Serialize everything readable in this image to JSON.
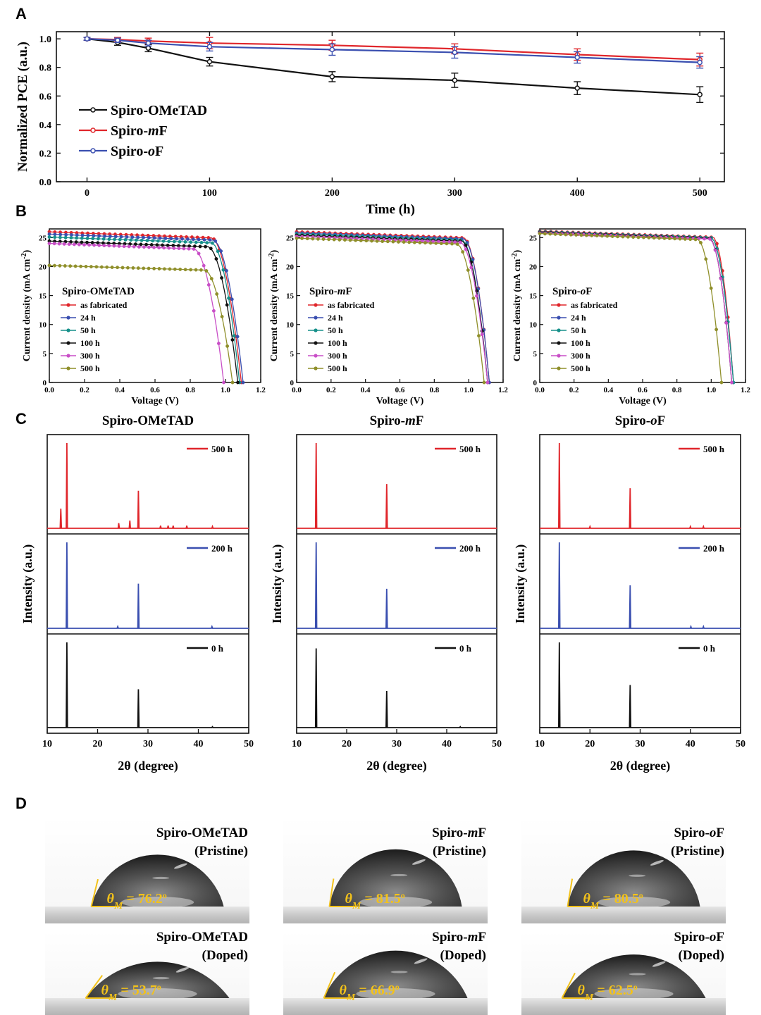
{
  "panel_labels": {
    "A": "A",
    "B": "B",
    "C": "C",
    "D": "D"
  },
  "colors": {
    "black": "#111111",
    "red": "#e0262b",
    "blue": "#3a4fb0",
    "teal": "#16908a",
    "magenta": "#c94fc7",
    "olive": "#8f8f2a",
    "gold": "#f3c21a"
  },
  "chart_data": [
    {
      "id": "A",
      "type": "line",
      "xlabel": "Time (h)",
      "ylabel": "Normalized PCE (a.u.)",
      "xlim": [
        -25,
        520
      ],
      "ylim": [
        0,
        1.05
      ],
      "xticks": [
        "0",
        "100",
        "200",
        "300",
        "400",
        "500"
      ],
      "yticks": [
        "0.0",
        "0.2",
        "0.4",
        "0.6",
        "0.8",
        "1.0"
      ],
      "x": [
        0,
        25,
        50,
        100,
        200,
        300,
        400,
        500
      ],
      "series": [
        {
          "name": "Spiro-OMeTAD",
          "legend_prefix": "Spiro-OMeTAD",
          "legend_italic": "",
          "legend_suffix": "",
          "color": "black",
          "values": [
            1.0,
            0.975,
            0.935,
            0.84,
            0.735,
            0.71,
            0.655,
            0.61
          ],
          "errors": [
            0.01,
            0.02,
            0.025,
            0.03,
            0.035,
            0.05,
            0.045,
            0.055
          ]
        },
        {
          "name": "Spiro-mF",
          "legend_prefix": "Spiro-",
          "legend_italic": "m",
          "legend_suffix": "F",
          "color": "red",
          "values": [
            1.0,
            0.995,
            0.985,
            0.97,
            0.955,
            0.93,
            0.89,
            0.855
          ],
          "errors": [
            0.01,
            0.015,
            0.02,
            0.04,
            0.035,
            0.035,
            0.04,
            0.045
          ]
        },
        {
          "name": "Spiro-oF",
          "legend_prefix": "Spiro-",
          "legend_italic": "o",
          "legend_suffix": "F",
          "color": "blue",
          "values": [
            1.0,
            0.99,
            0.97,
            0.945,
            0.925,
            0.905,
            0.87,
            0.835
          ],
          "errors": [
            0.01,
            0.015,
            0.02,
            0.03,
            0.04,
            0.04,
            0.04,
            0.04
          ]
        }
      ]
    },
    {
      "id": "B",
      "type": "line",
      "xlabel": "Voltage (V)",
      "ylabel": "Current density (mA cm",
      "ylabel_sup": "-2",
      "ylabel_end": ")",
      "xlim": [
        0,
        1.2
      ],
      "ylim": [
        0,
        26.5
      ],
      "xticks": [
        "0.0",
        "0.2",
        "0.4",
        "0.6",
        "0.8",
        "1.0",
        "1.2"
      ],
      "yticks": [
        "0",
        "5",
        "10",
        "15",
        "20",
        "25"
      ],
      "legend_labels": [
        "as fabricated",
        "24 h",
        "50 h",
        "100 h",
        "300 h",
        "500 h"
      ],
      "legend_colors": [
        "red",
        "blue",
        "teal",
        "black",
        "magenta",
        "olive"
      ],
      "subplots": [
        {
          "title_prefix": "Spiro-OMeTAD",
          "title_italic": "",
          "title_suffix": "",
          "curves": [
            {
              "label": "as fabricated",
              "jsc": 26.0,
              "voc": 1.09,
              "vk": 0.92
            },
            {
              "label": "24 h",
              "jsc": 25.6,
              "voc": 1.1,
              "vk": 0.93
            },
            {
              "label": "50 h",
              "jsc": 25.1,
              "voc": 1.08,
              "vk": 0.92
            },
            {
              "label": "100 h",
              "jsc": 24.4,
              "voc": 1.07,
              "vk": 0.9
            },
            {
              "label": "300 h",
              "jsc": 24.0,
              "voc": 0.99,
              "vk": 0.82
            },
            {
              "label": "500 h",
              "jsc": 20.2,
              "voc": 1.04,
              "vk": 0.88
            }
          ]
        },
        {
          "title_prefix": "Spiro-",
          "title_italic": "m",
          "title_suffix": "F",
          "curves": [
            {
              "label": "as fabricated",
              "jsc": 26.0,
              "voc": 1.12,
              "vk": 0.97
            },
            {
              "label": "24 h",
              "jsc": 25.8,
              "voc": 1.12,
              "vk": 0.97
            },
            {
              "label": "50 h",
              "jsc": 25.6,
              "voc": 1.11,
              "vk": 0.96
            },
            {
              "label": "100 h",
              "jsc": 25.4,
              "voc": 1.11,
              "vk": 0.96
            },
            {
              "label": "300 h",
              "jsc": 25.2,
              "voc": 1.11,
              "vk": 0.95
            },
            {
              "label": "500 h",
              "jsc": 24.9,
              "voc": 1.09,
              "vk": 0.93
            }
          ]
        },
        {
          "title_prefix": "Spiro-",
          "title_italic": "o",
          "title_suffix": "F",
          "curves": [
            {
              "label": "as fabricated",
              "jsc": 26.1,
              "voc": 1.13,
              "vk": 1.01
            },
            {
              "label": "24 h",
              "jsc": 26.0,
              "voc": 1.13,
              "vk": 1.0
            },
            {
              "label": "50 h",
              "jsc": 26.0,
              "voc": 1.13,
              "vk": 1.0
            },
            {
              "label": "100 h",
              "jsc": 25.9,
              "voc": 1.12,
              "vk": 0.99
            },
            {
              "label": "300 h",
              "jsc": 25.8,
              "voc": 1.12,
              "vk": 0.99
            },
            {
              "label": "500 h",
              "jsc": 25.7,
              "voc": 1.06,
              "vk": 0.92
            }
          ]
        }
      ]
    },
    {
      "id": "C",
      "type": "line",
      "xlabel_prefix": "2",
      "xlabel_theta": "θ",
      "xlabel_suffix": " (degree)",
      "ylabel": "Intensity (a.u.)",
      "xlim": [
        10,
        50
      ],
      "xticks": [
        "10",
        "20",
        "30",
        "40",
        "50"
      ],
      "row_labels": [
        "500 h",
        "200 h",
        "0 h"
      ],
      "row_colors": [
        "red",
        "blue",
        "black"
      ],
      "subplots": [
        {
          "title_prefix": "Spiro-OMeTAD",
          "title_italic": "",
          "title_suffix": "",
          "rows": [
            {
              "label": "500 h",
              "peaks": [
                [
                  12.7,
                  0.23
                ],
                [
                  13.9,
                  1.0
                ],
                [
                  24.2,
                  0.06
                ],
                [
                  26.4,
                  0.09
                ],
                [
                  28.1,
                  0.44
                ],
                [
                  32.5,
                  0.03
                ],
                [
                  34.0,
                  0.03
                ],
                [
                  35.0,
                  0.03
                ],
                [
                  37.7,
                  0.03
                ],
                [
                  42.8,
                  0.02
                ]
              ]
            },
            {
              "label": "200 h",
              "peaks": [
                [
                  13.9,
                  1.0
                ],
                [
                  28.1,
                  0.52
                ],
                [
                  24.0,
                  0.02
                ],
                [
                  42.7,
                  0.02
                ]
              ]
            },
            {
              "label": "0 h",
              "peaks": [
                [
                  13.9,
                  1.0
                ],
                [
                  28.1,
                  0.45
                ],
                [
                  42.8,
                  0.01
                ]
              ]
            }
          ]
        },
        {
          "title_prefix": "Spiro-",
          "title_italic": "m",
          "title_suffix": "F",
          "rows": [
            {
              "label": "500 h",
              "peaks": [
                [
                  13.9,
                  1.0
                ],
                [
                  28.0,
                  0.52
                ]
              ]
            },
            {
              "label": "200 h",
              "peaks": [
                [
                  13.9,
                  1.0
                ],
                [
                  28.0,
                  0.46
                ]
              ]
            },
            {
              "label": "0 h",
              "peaks": [
                [
                  13.9,
                  0.93
                ],
                [
                  28.0,
                  0.43
                ],
                [
                  42.7,
                  0.01
                ]
              ]
            }
          ]
        },
        {
          "title_prefix": "Spiro-",
          "title_italic": "o",
          "title_suffix": "F",
          "rows": [
            {
              "label": "500 h",
              "peaks": [
                [
                  13.9,
                  1.0
                ],
                [
                  28.0,
                  0.47
                ],
                [
                  20.0,
                  0.02
                ],
                [
                  40.0,
                  0.02
                ],
                [
                  42.6,
                  0.02
                ]
              ]
            },
            {
              "label": "200 h",
              "peaks": [
                [
                  13.9,
                  1.0
                ],
                [
                  28.0,
                  0.5
                ],
                [
                  40.1,
                  0.02
                ],
                [
                  42.6,
                  0.02
                ]
              ]
            },
            {
              "label": "0 h",
              "peaks": [
                [
                  13.9,
                  1.0
                ],
                [
                  28.0,
                  0.5
                ]
              ]
            }
          ]
        }
      ]
    }
  ],
  "panel_d": {
    "images": [
      {
        "name_prefix": "Spiro-OMeTAD",
        "name_italic": "",
        "name_suffix": "",
        "condition": "(Pristine)",
        "angle_value": "76.2",
        "angle_deg": 76.2
      },
      {
        "name_prefix": "Spiro-",
        "name_italic": "m",
        "name_suffix": "F",
        "condition": "(Pristine)",
        "angle_value": "81.5",
        "angle_deg": 81.5
      },
      {
        "name_prefix": "Spiro-",
        "name_italic": "o",
        "name_suffix": "F",
        "condition": "(Pristine)",
        "angle_value": "80.5",
        "angle_deg": 80.5
      },
      {
        "name_prefix": "Spiro-OMeTAD",
        "name_italic": "",
        "name_suffix": "",
        "condition": "(Doped)",
        "angle_value": "53.7",
        "angle_deg": 53.7
      },
      {
        "name_prefix": "Spiro-",
        "name_italic": "m",
        "name_suffix": "F",
        "condition": "(Doped)",
        "angle_value": "66.9",
        "angle_deg": 66.9
      },
      {
        "name_prefix": "Spiro-",
        "name_italic": "o",
        "name_suffix": "F",
        "condition": "(Doped)",
        "angle_value": "62.5",
        "angle_deg": 62.5
      }
    ],
    "theta_symbol": "θ",
    "theta_subscript": "M",
    "equals": " = ",
    "degree_mark": "o"
  }
}
